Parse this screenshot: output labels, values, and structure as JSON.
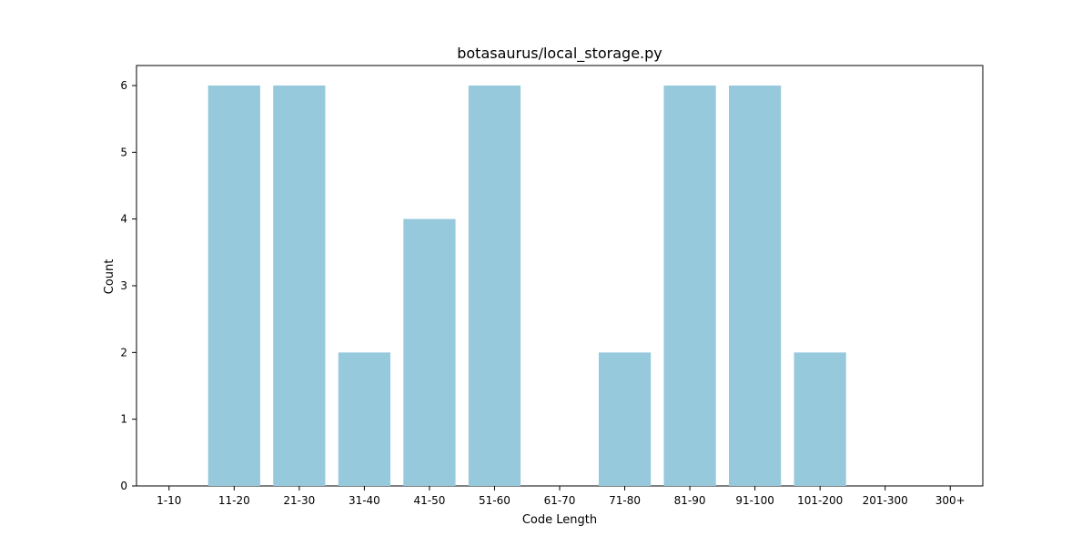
{
  "chart_data": {
    "type": "bar",
    "title": "botasaurus/local_storage.py",
    "xlabel": "Code Length",
    "ylabel": "Count",
    "categories": [
      "1-10",
      "11-20",
      "21-30",
      "31-40",
      "41-50",
      "51-60",
      "61-70",
      "71-80",
      "81-90",
      "91-100",
      "101-200",
      "201-300",
      "300+"
    ],
    "values": [
      0,
      6,
      6,
      2,
      4,
      6,
      0,
      2,
      6,
      6,
      2,
      0,
      0
    ],
    "ylim": [
      0,
      6.3
    ],
    "yticks": [
      0,
      1,
      2,
      3,
      4,
      5,
      6
    ],
    "grid": false,
    "legend": "none",
    "colors": {
      "bar": "#96c9dc",
      "axis": "#000000"
    }
  }
}
